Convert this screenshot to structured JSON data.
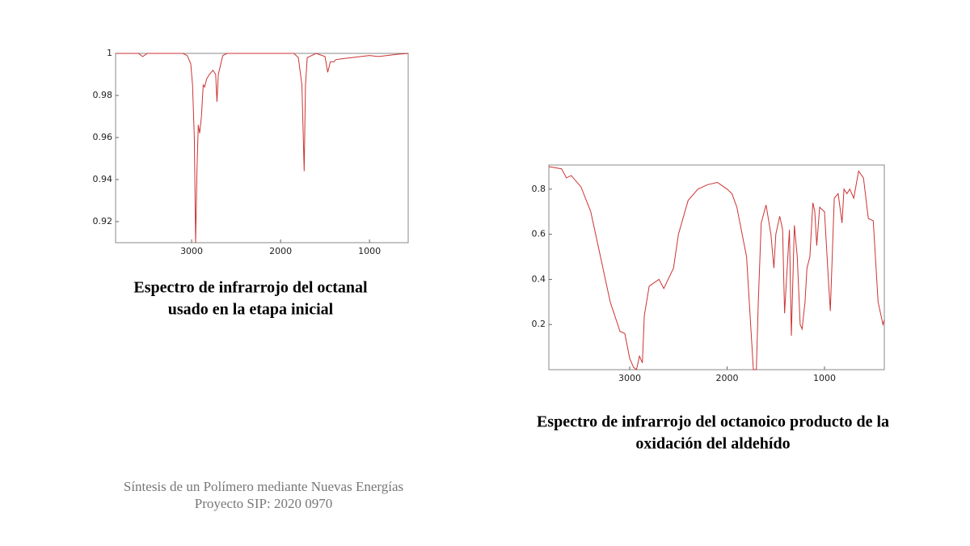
{
  "chart_data": [
    {
      "type": "line",
      "color": "#cc3333",
      "xlim": [
        3855,
        565
      ],
      "ylim": [
        0.91,
        1
      ],
      "xticks": [
        3000,
        2000,
        1000
      ],
      "yticks": [
        0.92,
        0.94,
        0.96,
        0.98,
        1
      ],
      "x": [
        3855,
        3600,
        3550,
        3500,
        3100,
        3050,
        3010,
        2990,
        2970,
        2955,
        2940,
        2925,
        2910,
        2890,
        2870,
        2855,
        2830,
        2800,
        2760,
        2730,
        2715,
        2700,
        2650,
        2600,
        2000,
        1850,
        1800,
        1760,
        1735,
        1720,
        1700,
        1600,
        1500,
        1470,
        1440,
        1400,
        1380,
        1300,
        1200,
        1100,
        1000,
        900,
        800,
        700,
        565
      ],
      "values": [
        1.0,
        1.0,
        0.9985,
        1.0,
        1.0,
        0.999,
        0.995,
        0.985,
        0.96,
        0.91,
        0.945,
        0.966,
        0.962,
        0.97,
        0.985,
        0.984,
        0.988,
        0.99,
        0.992,
        0.99,
        0.977,
        0.99,
        0.999,
        1.0,
        1.0,
        1.0,
        0.998,
        0.985,
        0.944,
        0.985,
        0.998,
        1.0,
        0.9985,
        0.991,
        0.996,
        0.996,
        0.997,
        0.9975,
        0.998,
        0.9985,
        0.999,
        0.9985,
        0.999,
        0.9995,
        1.0
      ]
    },
    {
      "type": "line",
      "color": "#cc3333",
      "xlim": [
        3830,
        386
      ],
      "ylim": [
        0,
        0.907
      ],
      "xticks": [
        3000,
        2000,
        1000
      ],
      "yticks": [
        0.2,
        0.4,
        0.6,
        0.8
      ],
      "x": [
        3830,
        3700,
        3650,
        3600,
        3500,
        3400,
        3300,
        3200,
        3100,
        3050,
        3000,
        2960,
        2930,
        2900,
        2870,
        2850,
        2800,
        2700,
        2650,
        2550,
        2500,
        2400,
        2300,
        2200,
        2100,
        2000,
        1950,
        1900,
        1800,
        1730,
        1700,
        1680,
        1650,
        1600,
        1550,
        1520,
        1500,
        1460,
        1430,
        1410,
        1390,
        1360,
        1340,
        1310,
        1280,
        1250,
        1230,
        1200,
        1180,
        1150,
        1120,
        1100,
        1080,
        1050,
        1000,
        960,
        940,
        900,
        860,
        820,
        800,
        770,
        740,
        700,
        650,
        600,
        550,
        500,
        450,
        400,
        386
      ],
      "values": [
        0.9,
        0.89,
        0.85,
        0.86,
        0.81,
        0.7,
        0.5,
        0.3,
        0.17,
        0.16,
        0.05,
        0.01,
        0.0,
        0.06,
        0.03,
        0.24,
        0.37,
        0.4,
        0.36,
        0.45,
        0.6,
        0.75,
        0.8,
        0.82,
        0.83,
        0.8,
        0.78,
        0.72,
        0.5,
        0.0,
        0.0,
        0.3,
        0.65,
        0.73,
        0.6,
        0.45,
        0.6,
        0.68,
        0.62,
        0.25,
        0.4,
        0.62,
        0.15,
        0.64,
        0.5,
        0.2,
        0.18,
        0.3,
        0.45,
        0.5,
        0.74,
        0.7,
        0.55,
        0.72,
        0.7,
        0.4,
        0.26,
        0.76,
        0.78,
        0.65,
        0.8,
        0.78,
        0.8,
        0.76,
        0.88,
        0.85,
        0.67,
        0.66,
        0.3,
        0.2,
        0.22
      ]
    }
  ],
  "captions": [
    [
      "Espectro de infrarrojo del octanal",
      "usado en la etapa inicial"
    ],
    [
      "Espectro de infrarrojo del octanoico producto de la",
      "oxidación del aldehído"
    ]
  ],
  "footer": [
    "Síntesis de un Polímero mediante Nuevas Energías",
    "Proyecto SIP: 2020 0970"
  ]
}
